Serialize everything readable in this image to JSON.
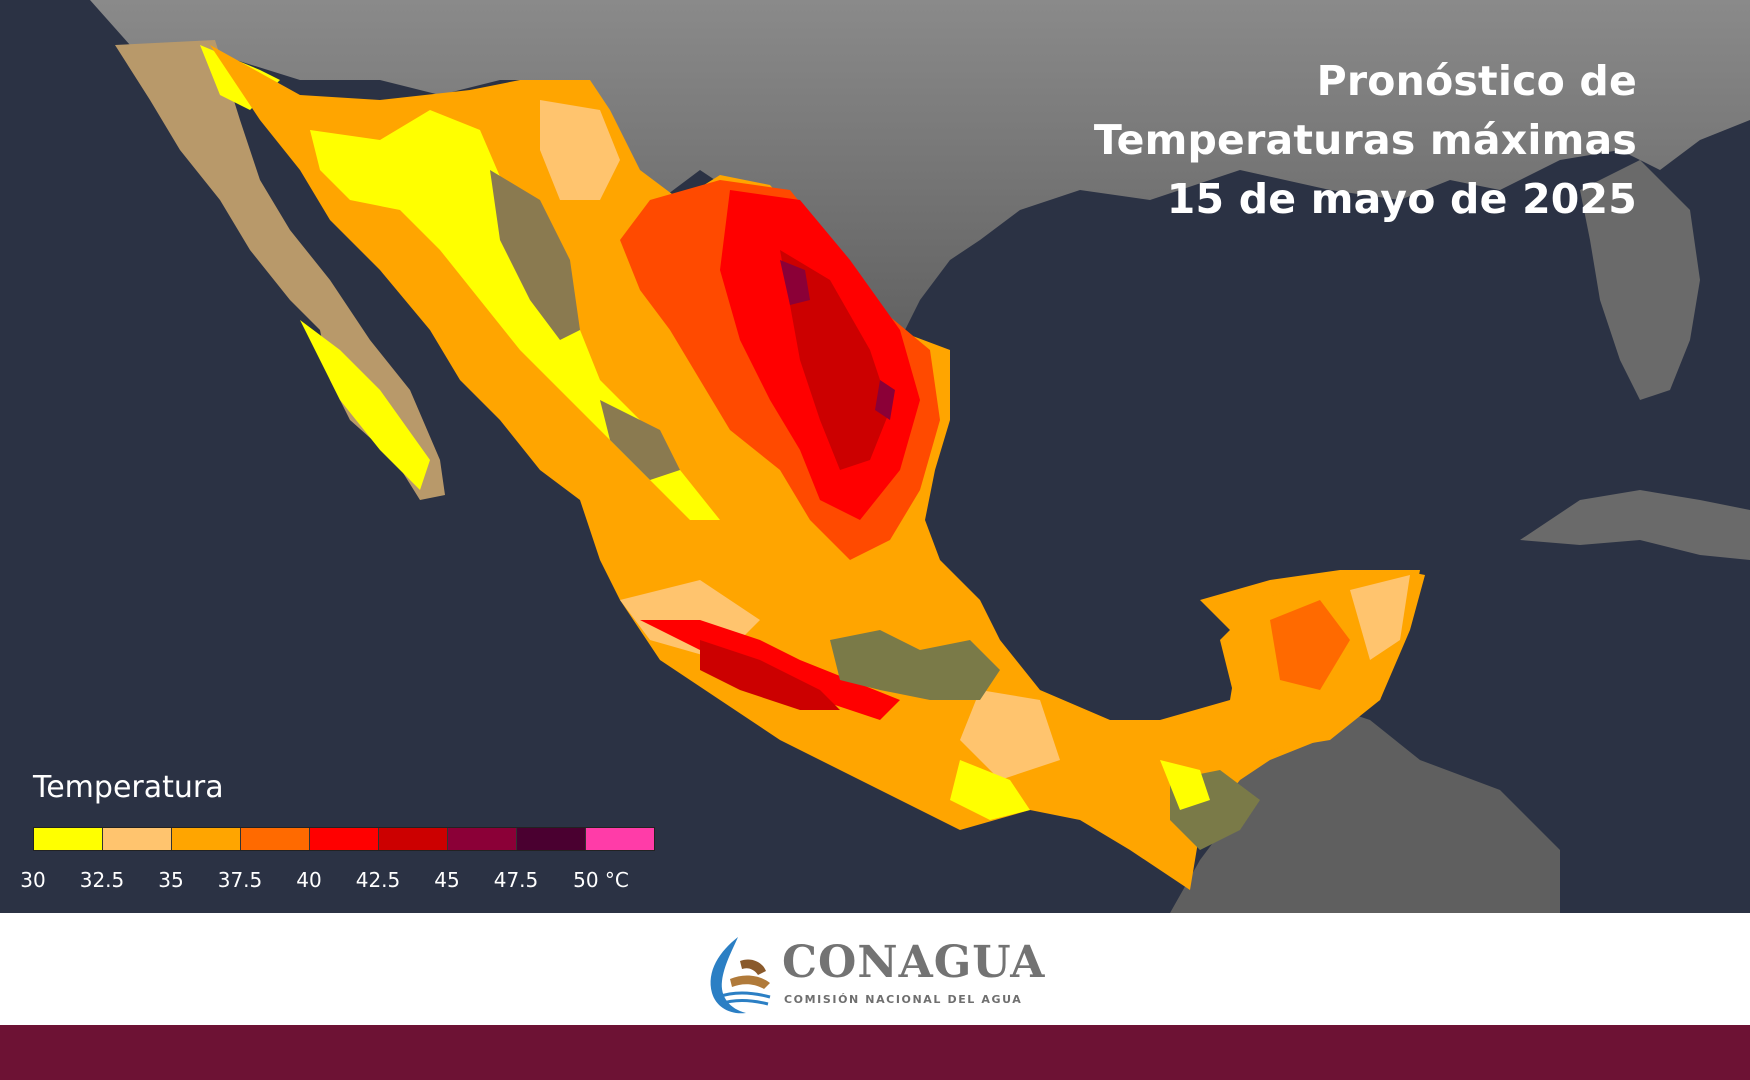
{
  "title": {
    "line1": "Pronóstico de",
    "line2": "Temperaturas máximas",
    "line3": "15 de mayo de 2025"
  },
  "legend": {
    "title": "Temperatura",
    "colors": [
      "#ffff00",
      "#ffc46e",
      "#ffa500",
      "#ff6a00",
      "#ff0000",
      "#cc0000",
      "#8b0037",
      "#4a0030",
      "#ff3ca8"
    ],
    "ticks": [
      "30",
      "32.5",
      "35",
      "37.5",
      "40",
      "42.5",
      "45",
      "47.5",
      "50 °C"
    ]
  },
  "footer": {
    "logo_name": "CONAGUA",
    "logo_subtitle": "COMISIÓN NACIONAL DEL AGUA",
    "brand_color": "#6d1234"
  },
  "map": {
    "background_ocean": "#2b3244",
    "land_gray": "#6e6e6e"
  }
}
